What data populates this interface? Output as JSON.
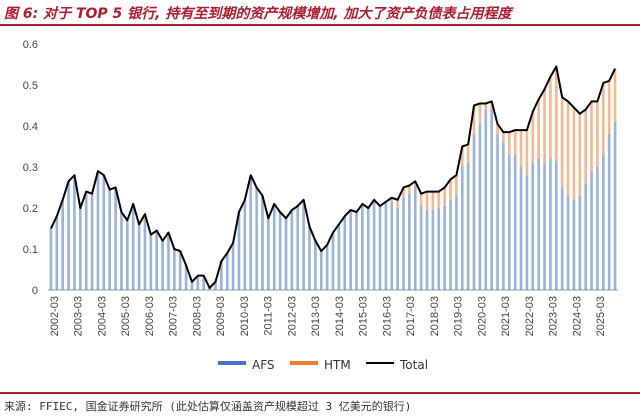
{
  "title": "图 6: 对于 TOP 5 银行, 持有至到期的资产规模增加, 加大了资产负债表占用程度",
  "source": "来源: FFIEC, 国金证券研究所 (此处估算仅涵盖资产规模超过 3 亿美元的银行)",
  "colors": {
    "afs": "#4472c4",
    "htm": "#ed7d31",
    "total": "#000000",
    "accent": "#b01c2e"
  },
  "chart_data": {
    "type": "bar",
    "stacked": true,
    "ylim": [
      0,
      0.6
    ],
    "yticks": [
      "0",
      "0.1",
      "0.2",
      "0.3",
      "0.4",
      "0.5",
      "0.6"
    ],
    "xtick_labels": [
      "2002-03",
      "2003-03",
      "2004-03",
      "2005-03",
      "2006-03",
      "2007-03",
      "2008-03",
      "2009-03",
      "2010-03",
      "2011-03",
      "2012-03",
      "2013-03",
      "2014-03",
      "2015-03",
      "2016-03",
      "2017-03",
      "2018-03",
      "2019-03",
      "2020-03",
      "2021-03",
      "2022-03",
      "2023-03",
      "2024-03",
      "2025-03"
    ],
    "legend": [
      "AFS",
      "HTM",
      "Total"
    ],
    "legend_position": "bottom",
    "series": [
      {
        "name": "AFS",
        "values": [
          0.15,
          0.18,
          0.22,
          0.265,
          0.28,
          0.2,
          0.24,
          0.235,
          0.29,
          0.28,
          0.245,
          0.25,
          0.19,
          0.17,
          0.21,
          0.16,
          0.185,
          0.135,
          0.145,
          0.12,
          0.14,
          0.1,
          0.095,
          0.06,
          0.02,
          0.035,
          0.035,
          0.005,
          0.02,
          0.07,
          0.09,
          0.115,
          0.19,
          0.22,
          0.28,
          0.25,
          0.23,
          0.175,
          0.21,
          0.19,
          0.175,
          0.195,
          0.205,
          0.22,
          0.155,
          0.12,
          0.095,
          0.11,
          0.14,
          0.16,
          0.18,
          0.195,
          0.19,
          0.21,
          0.2,
          0.22,
          0.205,
          0.21,
          0.215,
          0.2,
          0.225,
          0.235,
          0.255,
          0.205,
          0.195,
          0.195,
          0.2,
          0.205,
          0.22,
          0.23,
          0.3,
          0.31,
          0.38,
          0.405,
          0.44,
          0.44,
          0.38,
          0.36,
          0.33,
          0.33,
          0.3,
          0.28,
          0.31,
          0.32,
          0.31,
          0.32,
          0.315,
          0.25,
          0.23,
          0.22,
          0.23,
          0.26,
          0.29,
          0.3,
          0.33,
          0.38,
          0.41
        ]
      },
      {
        "name": "HTM",
        "values": [
          0,
          0,
          0,
          0,
          0,
          0,
          0,
          0,
          0,
          0,
          0,
          0,
          0,
          0,
          0,
          0,
          0,
          0,
          0,
          0,
          0,
          0,
          0,
          0,
          0,
          0,
          0,
          0,
          0,
          0,
          0,
          0,
          0,
          0,
          0,
          0,
          0,
          0,
          0,
          0,
          0,
          0,
          0,
          0,
          0,
          0,
          0,
          0,
          0,
          0,
          0,
          0,
          0,
          0,
          0,
          0,
          0,
          0.005,
          0.01,
          0.02,
          0.025,
          0.02,
          0.01,
          0.03,
          0.045,
          0.045,
          0.04,
          0.045,
          0.05,
          0.05,
          0.05,
          0.045,
          0.07,
          0.05,
          0.015,
          0.02,
          0.025,
          0.025,
          0.055,
          0.06,
          0.09,
          0.11,
          0.125,
          0.145,
          0.18,
          0.2,
          0.23,
          0.22,
          0.23,
          0.225,
          0.2,
          0.18,
          0.17,
          0.16,
          0.175,
          0.13,
          0.13
        ]
      },
      {
        "name": "Total",
        "values": [
          0.15,
          0.18,
          0.22,
          0.265,
          0.28,
          0.2,
          0.24,
          0.235,
          0.29,
          0.28,
          0.245,
          0.25,
          0.19,
          0.17,
          0.21,
          0.16,
          0.185,
          0.135,
          0.145,
          0.12,
          0.14,
          0.1,
          0.095,
          0.06,
          0.02,
          0.035,
          0.035,
          0.005,
          0.02,
          0.07,
          0.09,
          0.115,
          0.19,
          0.22,
          0.28,
          0.25,
          0.23,
          0.175,
          0.21,
          0.19,
          0.175,
          0.195,
          0.205,
          0.22,
          0.155,
          0.12,
          0.095,
          0.11,
          0.14,
          0.16,
          0.18,
          0.195,
          0.19,
          0.21,
          0.2,
          0.22,
          0.205,
          0.215,
          0.225,
          0.22,
          0.25,
          0.255,
          0.265,
          0.235,
          0.24,
          0.24,
          0.24,
          0.25,
          0.27,
          0.28,
          0.35,
          0.355,
          0.45,
          0.455,
          0.455,
          0.46,
          0.405,
          0.385,
          0.385,
          0.39,
          0.39,
          0.39,
          0.435,
          0.465,
          0.49,
          0.52,
          0.545,
          0.47,
          0.46,
          0.445,
          0.43,
          0.44,
          0.46,
          0.46,
          0.505,
          0.51,
          0.54
        ]
      }
    ]
  }
}
